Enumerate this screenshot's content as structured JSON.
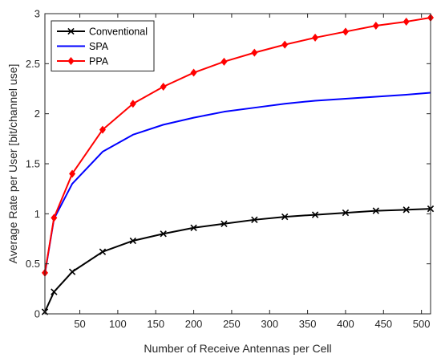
{
  "chart_data": {
    "type": "line",
    "xlabel": "Number of Receive Antennas per Cell",
    "ylabel": "Average Rate per User [bit/channel use]",
    "xlim": [
      4,
      512
    ],
    "ylim": [
      0,
      3
    ],
    "xticks": [
      50,
      100,
      150,
      200,
      250,
      300,
      350,
      400,
      450,
      500
    ],
    "yticks": [
      0,
      0.5,
      1,
      1.5,
      2,
      2.5,
      3
    ],
    "ytick_labels": [
      "0",
      "0.5",
      "1",
      "1.5",
      "2",
      "2.5",
      "3"
    ],
    "grid": false,
    "legend_position": "top-left",
    "series": [
      {
        "name": "Conventional",
        "color": "#000000",
        "marker": "x",
        "x": [
          4,
          16,
          40,
          80,
          120,
          160,
          200,
          240,
          280,
          320,
          360,
          400,
          440,
          480,
          512
        ],
        "y": [
          0.02,
          0.22,
          0.42,
          0.62,
          0.73,
          0.8,
          0.86,
          0.9,
          0.94,
          0.97,
          0.99,
          1.01,
          1.03,
          1.04,
          1.05
        ]
      },
      {
        "name": "SPA",
        "color": "#0000ff",
        "marker": "none",
        "x": [
          4,
          16,
          40,
          80,
          120,
          160,
          200,
          240,
          280,
          320,
          360,
          400,
          440,
          480,
          512
        ],
        "y": [
          0.4,
          0.95,
          1.3,
          1.62,
          1.79,
          1.89,
          1.96,
          2.02,
          2.06,
          2.1,
          2.13,
          2.15,
          2.17,
          2.19,
          2.21
        ]
      },
      {
        "name": "PPA",
        "color": "#ff0000",
        "marker": "diamond",
        "x": [
          4,
          16,
          40,
          80,
          120,
          160,
          200,
          240,
          280,
          320,
          360,
          400,
          440,
          480,
          512
        ],
        "y": [
          0.41,
          0.96,
          1.4,
          1.84,
          2.1,
          2.27,
          2.41,
          2.52,
          2.61,
          2.69,
          2.76,
          2.82,
          2.88,
          2.92,
          2.96
        ]
      }
    ]
  }
}
